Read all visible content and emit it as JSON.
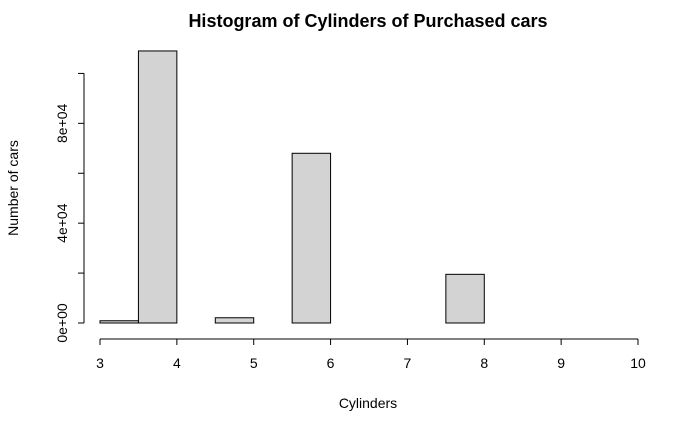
{
  "chart_data": {
    "type": "bar",
    "title": "Histogram of Cylinders of Purchased cars",
    "xlabel": "Cylinders",
    "ylabel": "Number of cars",
    "bins": [
      {
        "x0": 3.0,
        "x1": 3.5,
        "value": 900
      },
      {
        "x0": 3.5,
        "x1": 4.0,
        "value": 109000
      },
      {
        "x0": 4.0,
        "x1": 4.5,
        "value": 0
      },
      {
        "x0": 4.5,
        "x1": 5.0,
        "value": 2100
      },
      {
        "x0": 5.0,
        "x1": 5.5,
        "value": 0
      },
      {
        "x0": 5.5,
        "x1": 6.0,
        "value": 68000
      },
      {
        "x0": 6.0,
        "x1": 6.5,
        "value": 0
      },
      {
        "x0": 6.5,
        "x1": 7.0,
        "value": 0
      },
      {
        "x0": 7.0,
        "x1": 7.5,
        "value": 0
      },
      {
        "x0": 7.5,
        "x1": 8.0,
        "value": 19500
      },
      {
        "x0": 8.0,
        "x1": 8.5,
        "value": 0
      },
      {
        "x0": 8.5,
        "x1": 9.0,
        "value": 0
      },
      {
        "x0": 9.0,
        "x1": 9.5,
        "value": 0
      },
      {
        "x0": 9.5,
        "x1": 10.0,
        "value": 0
      }
    ],
    "xlim": [
      3,
      10
    ],
    "ylim": [
      0,
      100000
    ],
    "x_ticks": [
      3,
      4,
      5,
      6,
      7,
      8,
      9,
      10
    ],
    "x_tick_labels": [
      "3",
      "4",
      "5",
      "6",
      "7",
      "8",
      "9",
      "10"
    ],
    "y_ticks": [
      0,
      20000,
      40000,
      60000,
      80000,
      100000
    ],
    "y_tick_labels": [
      "0e+00",
      "",
      "4e+04",
      "",
      "8e+04",
      ""
    ],
    "bar_fill": "#d3d3d3",
    "bar_stroke": "#000000",
    "grid": false
  }
}
